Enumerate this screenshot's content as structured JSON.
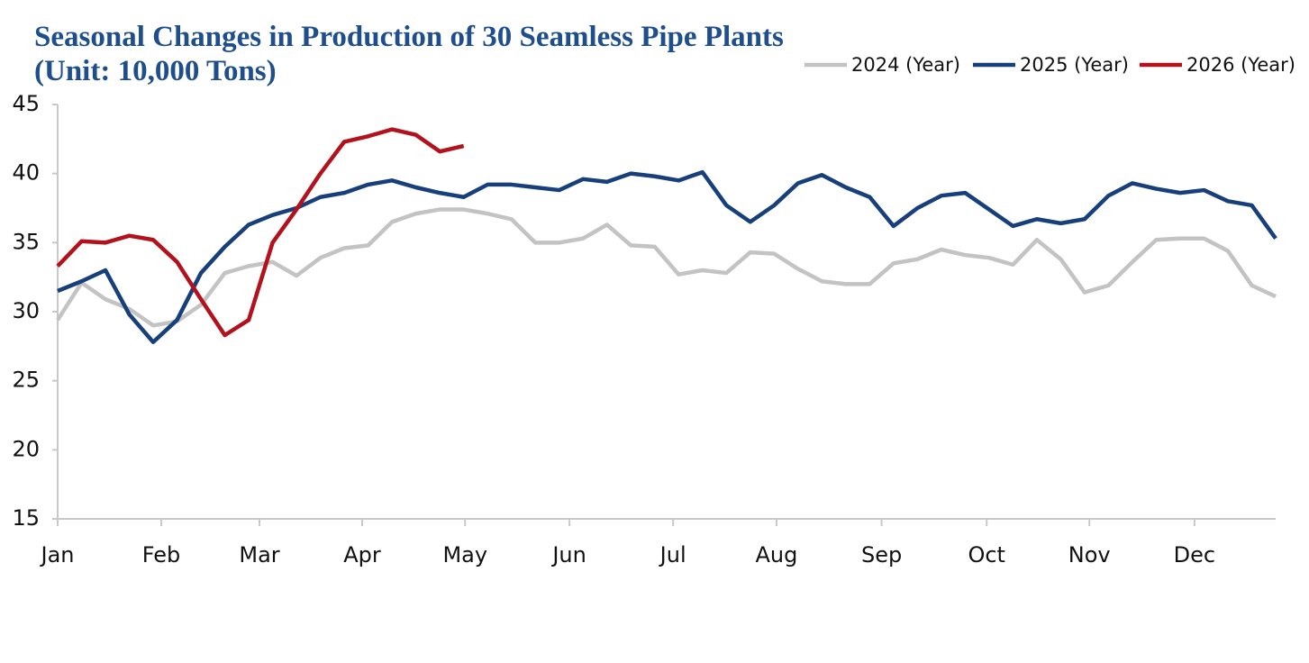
{
  "chart_data": {
    "type": "line",
    "title": "Seasonal Changes in Production of 30 Seamless Pipe Plants (Unit: 10,000 Tons)",
    "x": [
      0,
      1,
      2,
      3,
      4,
      5,
      6,
      7,
      8,
      9,
      10,
      11,
      12,
      13,
      14,
      15,
      16,
      17,
      18,
      19,
      20,
      21,
      22,
      23,
      24,
      25,
      26,
      27,
      28,
      29,
      30,
      31,
      32,
      33,
      34,
      35,
      36,
      37,
      38,
      39,
      40,
      41,
      42,
      43,
      44,
      45,
      46,
      47,
      48,
      49,
      50,
      51
    ],
    "xlim": [
      0,
      51
    ],
    "xticks": [
      {
        "value": 0,
        "label": "Jan"
      },
      {
        "value": 4.34,
        "label": "Feb"
      },
      {
        "value": 8.45,
        "label": "Mar"
      },
      {
        "value": 12.75,
        "label": "Apr"
      },
      {
        "value": 17.06,
        "label": "May"
      },
      {
        "value": 21.43,
        "label": "Jun"
      },
      {
        "value": 25.77,
        "label": "Jul"
      },
      {
        "value": 30.1,
        "label": "Aug"
      },
      {
        "value": 34.5,
        "label": "Sep"
      },
      {
        "value": 38.9,
        "label": "Oct"
      },
      {
        "value": 43.2,
        "label": "Nov"
      },
      {
        "value": 47.6,
        "label": "Dec"
      }
    ],
    "ylim": [
      15,
      45
    ],
    "yticks": [
      15,
      20,
      25,
      30,
      35,
      40,
      45
    ],
    "grid": false,
    "legend": "top-right",
    "series": [
      {
        "name": "2024 (Year)",
        "color": "#c3c3c3",
        "values": [
          29.4,
          32.1,
          30.9,
          30.2,
          29.0,
          29.3,
          30.5,
          32.8,
          33.3,
          33.6,
          32.6,
          33.9,
          34.6,
          34.8,
          36.5,
          37.1,
          37.4,
          37.4,
          37.1,
          36.7,
          35.0,
          35.0,
          35.3,
          36.3,
          34.8,
          34.7,
          32.7,
          33.0,
          32.8,
          34.3,
          34.2,
          33.1,
          32.2,
          32.0,
          32.0,
          33.5,
          33.8,
          34.5,
          34.1,
          33.9,
          33.4,
          35.2,
          33.8,
          31.4,
          31.9,
          33.6,
          35.2,
          35.3,
          35.3,
          34.4,
          31.9,
          31.1
        ]
      },
      {
        "name": "2025 (Year)",
        "color": "#173f7c",
        "values": [
          31.5,
          32.2,
          33.0,
          29.8,
          27.8,
          29.4,
          32.8,
          34.7,
          36.3,
          37.0,
          37.5,
          38.3,
          38.6,
          39.2,
          39.5,
          39.0,
          38.6,
          38.3,
          39.2,
          39.2,
          39.0,
          38.8,
          39.6,
          39.4,
          40.0,
          39.8,
          39.5,
          40.1,
          37.7,
          36.5,
          37.7,
          39.3,
          39.9,
          39.0,
          38.3,
          36.2,
          37.5,
          38.4,
          38.6,
          37.4,
          36.2,
          36.7,
          36.4,
          36.7,
          38.4,
          39.3,
          38.9,
          38.6,
          38.8,
          38.0,
          37.7,
          35.3
        ]
      },
      {
        "name": "2026 (Year)",
        "color": "#b3121c",
        "values": [
          33.3,
          35.1,
          35.0,
          35.5,
          35.2,
          33.6,
          30.9,
          28.3,
          29.4,
          35.0,
          37.4,
          40.0,
          42.3,
          42.7,
          43.2,
          42.8,
          41.6,
          42.0,
          null,
          null,
          null,
          null,
          null,
          null,
          null,
          null,
          null,
          null,
          null,
          null,
          null,
          null,
          null,
          null,
          null,
          null,
          null,
          null,
          null,
          null,
          null,
          null,
          null,
          null,
          null,
          null,
          null,
          null,
          null,
          null,
          null,
          null
        ]
      }
    ]
  }
}
